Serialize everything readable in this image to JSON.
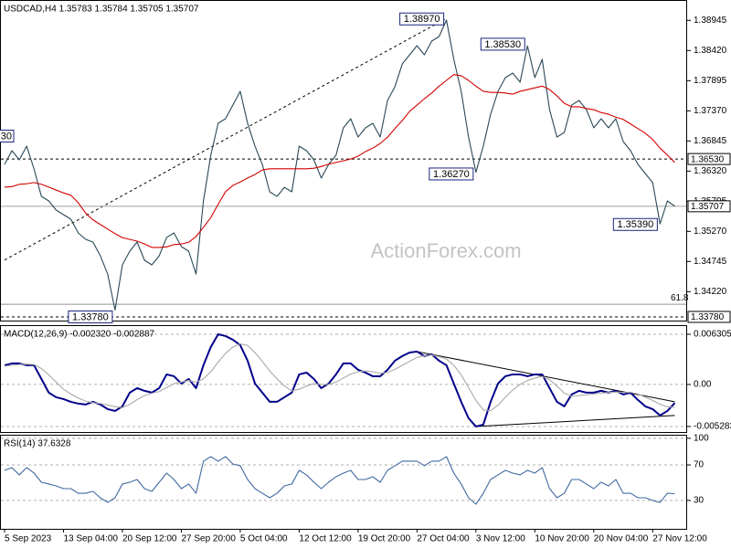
{
  "chart_data": [
    {
      "type": "line",
      "title": "USDCAD,H4 1.35783 1.35784 1.35705 1.35707",
      "watermark": "ActionForex.com",
      "ylim": [
        1.337,
        1.393
      ],
      "yticks": [
        1.38945,
        {
          "value": 1.3842,
          "label": "1.38420"
        },
        1.37895,
        {
          "value": 1.3737,
          "label": "1.37370"
        },
        1.36845,
        {
          "value": 1.3632,
          "label": "1.36320"
        },
        1.35795,
        {
          "value": 1.3527,
          "label": "1.35270"
        },
        1.34745,
        {
          "value": 1.3422,
          "label": "1.34220"
        }
      ],
      "grid": false,
      "series": [
        {
          "color": "#2a4858",
          "values": [
            1.36436,
            1.36675,
            1.36516,
            1.36754,
            1.36357,
            1.35879,
            1.358,
            1.35641,
            1.35561,
            1.35482,
            1.35243,
            1.35132,
            1.35084,
            1.34845,
            1.34527,
            1.339,
            1.34686,
            1.34925,
            1.35084,
            1.34766,
            1.34686,
            1.34845,
            1.35163,
            1.35243,
            1.35004,
            1.34925,
            1.34527,
            1.358,
            1.36595,
            1.37152,
            1.37232,
            1.3747,
            1.37709,
            1.37152,
            1.36754,
            1.36436,
            1.35959,
            1.35879,
            1.36038,
            1.35959,
            1.36754,
            1.36675,
            1.36516,
            1.36198,
            1.36436,
            1.36595,
            1.37073,
            1.37232,
            1.36913,
            1.37073,
            1.37152,
            1.36913,
            1.3755,
            1.37789,
            1.38186,
            1.38345,
            1.38504,
            1.38345,
            1.38584,
            1.38664,
            1.3895,
            1.38266,
            1.37709,
            1.36913,
            1.363,
            1.36754,
            1.37311,
            1.37709,
            1.37948,
            1.38027,
            1.37868,
            1.385,
            1.37948,
            1.38266,
            1.37391,
            1.36913,
            1.36993,
            1.3747,
            1.3755,
            1.37391,
            1.37073,
            1.37232,
            1.37073,
            1.37232,
            1.36834,
            1.36675,
            1.36436,
            1.36277,
            1.36118,
            1.354,
            1.358,
            1.35707
          ]
        },
        {
          "color": "#d40000",
          "values": [
            1.3604,
            1.3605,
            1.3609,
            1.361,
            1.3612,
            1.3609,
            1.3604,
            1.3599,
            1.3594,
            1.359,
            1.3577,
            1.3559,
            1.3547,
            1.3539,
            1.3531,
            1.3523,
            1.3516,
            1.3513,
            1.351,
            1.3505,
            1.3499,
            1.3499,
            1.35,
            1.3504,
            1.3505,
            1.3508,
            1.3518,
            1.3534,
            1.3551,
            1.3574,
            1.3596,
            1.3607,
            1.3613,
            1.362,
            1.3626,
            1.3634,
            1.3636,
            1.3636,
            1.3636,
            1.3636,
            1.3636,
            1.3636,
            1.3637,
            1.364,
            1.3644,
            1.3647,
            1.365,
            1.3653,
            1.3658,
            1.3666,
            1.3672,
            1.368,
            1.3691,
            1.3706,
            1.372,
            1.3736,
            1.3747,
            1.3758,
            1.3768,
            1.378,
            1.379,
            1.38,
            1.3798,
            1.379,
            1.378,
            1.3771,
            1.3769,
            1.3769,
            1.3768,
            1.3766,
            1.3771,
            1.3774,
            1.3777,
            1.378,
            1.3774,
            1.3763,
            1.375,
            1.3744,
            1.3744,
            1.3741,
            1.3739,
            1.3734,
            1.3731,
            1.3726,
            1.3722,
            1.3714,
            1.3706,
            1.3698,
            1.3687,
            1.3672,
            1.366,
            1.3647
          ]
        }
      ],
      "levels": [
        {
          "value": 1.3653,
          "label": "1.36530",
          "style": "dashed"
        },
        {
          "value": 1.35707,
          "label": "1.35707",
          "style": "solid"
        },
        {
          "value": 1.3378,
          "label": "1.33780",
          "style": "dashed"
        }
      ],
      "fib": {
        "value": 1.34,
        "label": "61.8"
      },
      "annotations": [
        {
          "text": "1.38970",
          "x": 60,
          "y": 1.3897
        },
        {
          "text": "1.38530",
          "x": 71,
          "y": 1.3853
        },
        {
          "text": "1.36270",
          "x": 64,
          "y": 1.3627
        },
        {
          "text": "1.35390",
          "x": 89,
          "y": 1.3539
        },
        {
          "text": "1.33780",
          "x": 15,
          "y": 1.3378
        }
      ],
      "edge_label": {
        "text": "30",
        "y": 1.3693
      },
      "trendlines": [
        {
          "x": [
            0,
            60
          ],
          "y": [
            1.3477,
            1.3898
          ]
        }
      ]
    },
    {
      "type": "line",
      "title": "MACD(12,26,9) -0.002320 -0.002887",
      "ylim": [
        -0.00609,
        0.00745
      ],
      "yticks": [
        0.006305,
        {
          "value": 0,
          "label": "0.00"
        },
        -0.005283
      ],
      "grid": true,
      "series": [
        {
          "color": "#00008b",
          "values": [
            0.00241,
            0.00264,
            0.00264,
            0.00241,
            0.00241,
            0.00069,
            -0.00103,
            -0.00161,
            -0.00184,
            -0.00218,
            -0.00241,
            -0.00252,
            -0.00218,
            -0.00252,
            -0.0031,
            -0.00333,
            -0.00275,
            -0.00103,
            -0.00046,
            -0.0008,
            -0.00103,
            -0.00046,
            0.00126,
            0.00103,
            0.00011,
            0.00069,
            -0.00046,
            0.00241,
            0.0047,
            0.00631,
            0.00608,
            0.00562,
            0.00493,
            0.00298,
            0.00011,
            -0.00103,
            -0.00218,
            -0.00218,
            -0.00161,
            -0.00103,
            0.00126,
            0.00149,
            0.00069,
            -0.00046,
            0.00011,
            0.00126,
            0.00264,
            0.00264,
            0.00184,
            0.00149,
            0.00103,
            0.00103,
            0.00184,
            0.00298,
            0.00356,
            0.00401,
            0.00413,
            0.00356,
            0.00379,
            0.00298,
            0.00241,
            0.00011,
            -0.00218,
            -0.00424,
            -0.00528,
            -0.00505,
            -0.00218,
            0.00011,
            0.00103,
            0.00126,
            0.00126,
            0.00103,
            0.00126,
            0.00126,
            -0.00046,
            -0.00218,
            -0.00275,
            -0.00126,
            -0.0008,
            -0.00103,
            -0.00103,
            -0.0008,
            -0.00103,
            -0.0008,
            -0.00126,
            -0.00103,
            -0.00195,
            -0.00275,
            -0.0031,
            -0.0039,
            -0.00333,
            -0.00232
          ]
        },
        {
          "color": "#a9a9a9",
          "values": [
            0.0023,
            0.0024,
            0.0025,
            0.00255,
            0.0025,
            0.002,
            0.0012,
            0.0003,
            -0.0006,
            -0.0012,
            -0.0017,
            -0.0021,
            -0.0023,
            -0.0024,
            -0.0026,
            -0.0028,
            -0.0029,
            -0.0025,
            -0.0019,
            -0.0014,
            -0.0011,
            -0.0009,
            -0.0004,
            0.0001,
            0.0003,
            0.0005,
            0.0003,
            0.0007,
            0.0016,
            0.0028,
            0.0039,
            0.0047,
            0.0051,
            0.0049,
            0.004,
            0.0029,
            0.0017,
            0.0007,
            -0.0002,
            -0.0008,
            -0.0006,
            -0.0002,
            0.0001,
            0,
            0,
            0.0003,
            0.0008,
            0.0013,
            0.0016,
            0.0017,
            0.0016,
            0.0014,
            0.0015,
            0.0019,
            0.0024,
            0.0029,
            0.0034,
            0.0036,
            0.0037,
            0.0035,
            0.0032,
            0.0024,
            0.0012,
            -0.0004,
            -0.002,
            -0.0032,
            -0.0033,
            -0.0026,
            -0.0016,
            -0.0007,
            0,
            0.0005,
            0.0008,
            0.001,
            0.0006,
            -0.0002,
            -0.0011,
            -0.0015,
            -0.0014,
            -0.0013,
            -0.0012,
            -0.0011,
            -0.001,
            -0.00095,
            -0.001,
            -0.001,
            -0.0012,
            -0.0016,
            -0.002,
            -0.0025,
            -0.0028,
            -0.00289
          ]
        }
      ],
      "trendlines": [
        {
          "x": [
            56,
            91
          ],
          "y": [
            0.00413,
            -0.00218
          ]
        },
        {
          "x": [
            64,
            91
          ],
          "y": [
            -0.00528,
            -0.0039
          ]
        }
      ]
    },
    {
      "type": "line",
      "title": "RSI(14) 37.6328",
      "ylim": [
        -3,
        104
      ],
      "yticks": [
        100,
        70,
        30
      ],
      "grid": true,
      "categories": [
        "5 Sep 2023",
        null,
        null,
        null,
        null,
        null,
        null,
        null,
        "13 Sep 04:00",
        null,
        null,
        null,
        null,
        null,
        null,
        null,
        "20 Sep 12:00",
        null,
        null,
        null,
        null,
        null,
        null,
        null,
        "27 Sep 20:00",
        null,
        null,
        null,
        null,
        null,
        null,
        null,
        "5 Oct 04:00",
        null,
        null,
        null,
        null,
        null,
        null,
        null,
        "12 Oct 12:00",
        null,
        null,
        null,
        null,
        null,
        null,
        null,
        "19 Oct 20:00",
        null,
        null,
        null,
        null,
        null,
        null,
        null,
        "27 Oct 04:00",
        null,
        null,
        null,
        null,
        null,
        null,
        null,
        "3 Nov 12:00",
        null,
        null,
        null,
        null,
        null,
        null,
        null,
        "10 Nov 20:00",
        null,
        null,
        null,
        null,
        null,
        null,
        null,
        "20 Nov 04:00",
        null,
        null,
        null,
        null,
        null,
        null,
        null,
        "27 Nov 12:00",
        null,
        null,
        null
      ],
      "series": [
        {
          "color": "#4169a0",
          "values": [
            63.9,
            67,
            58.8,
            67,
            60.8,
            50.5,
            48.5,
            46.4,
            43.3,
            43.3,
            38.1,
            38.1,
            40.2,
            33,
            27.8,
            33,
            48.5,
            50.5,
            53.6,
            43.3,
            40.2,
            50.5,
            60.8,
            53.6,
            43.3,
            48.5,
            38.1,
            74.2,
            79.4,
            74.2,
            79.4,
            71.1,
            69.1,
            53.6,
            43.3,
            38.1,
            33,
            38.1,
            46.4,
            48.5,
            63.9,
            58.8,
            50.5,
            43.3,
            50.5,
            56.7,
            60.8,
            63.9,
            53.6,
            53.6,
            56.7,
            50.5,
            63.9,
            69.1,
            74.2,
            74.2,
            74.2,
            69.1,
            74.2,
            74.2,
            79.4,
            60.8,
            48.5,
            33,
            25.8,
            38.1,
            53.6,
            58.8,
            63.9,
            60.8,
            58.8,
            63.9,
            60.8,
            67,
            43.3,
            33,
            38.1,
            53.6,
            53.6,
            48.5,
            43.3,
            50.5,
            46.4,
            53.6,
            38.1,
            38.1,
            33,
            33,
            29.9,
            27.8,
            38.1,
            37.6328
          ]
        }
      ]
    }
  ]
}
